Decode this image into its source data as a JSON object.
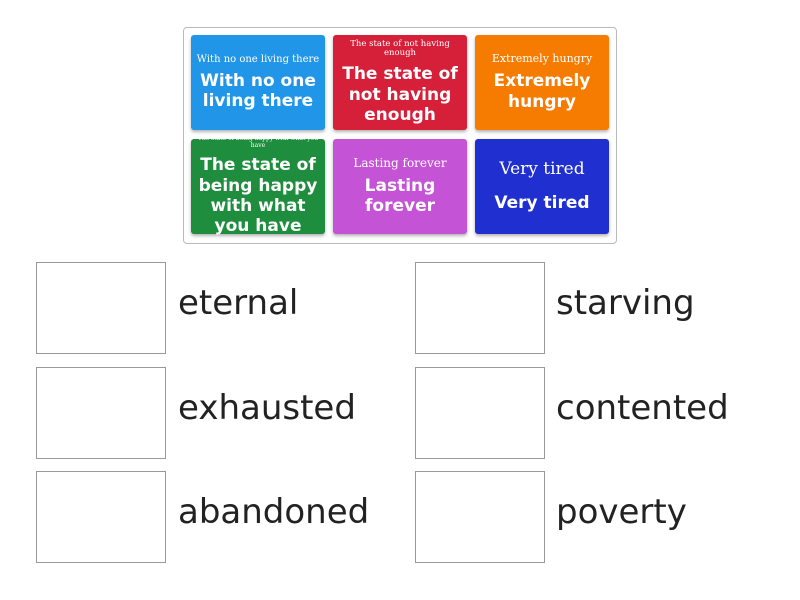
{
  "tiles": [
    {
      "small": "With no one living there",
      "big": "With no one living there",
      "color": "#2196e8"
    },
    {
      "small": "The state of not having enough",
      "big": "The state of not having enough",
      "color": "#d6203a"
    },
    {
      "small": "Extremely hungry",
      "big": "Extremely hungry",
      "color": "#f57c00"
    },
    {
      "small": "The state of being happy with what you have",
      "big": "The state of being happy with what you have",
      "color": "#1e8e3e"
    },
    {
      "small": "Lasting forever",
      "big": "Lasting forever",
      "color": "#c553d6"
    },
    {
      "small": "Very tired",
      "big": "Very tired",
      "color": "#1f2fd0"
    }
  ],
  "targets": [
    "eternal",
    "starving",
    "exhausted",
    "contented",
    "abandoned",
    "poverty"
  ]
}
